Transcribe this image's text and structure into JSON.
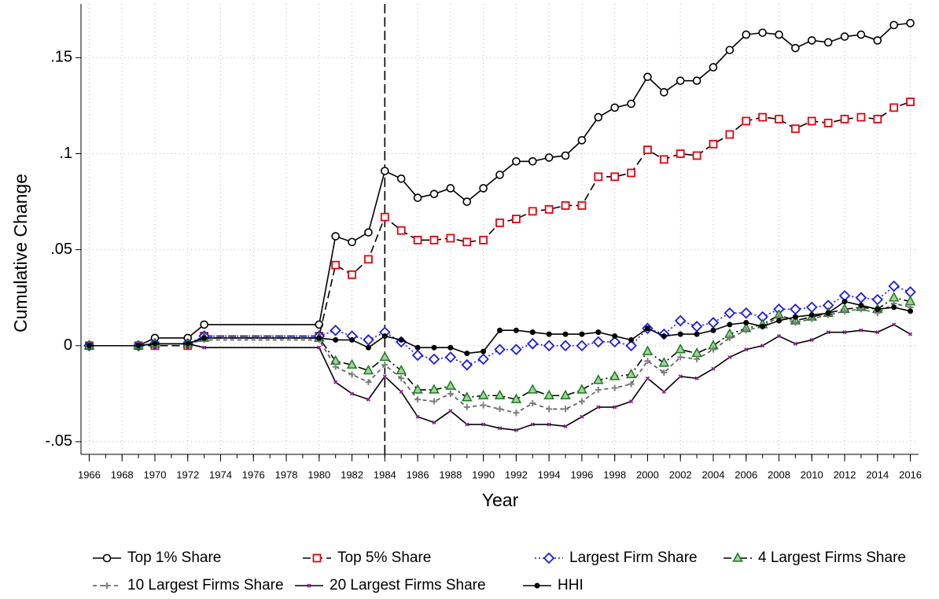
{
  "chart_data": {
    "type": "line",
    "y_label": "Cumulative Change",
    "x_label": "Year",
    "x": [
      1966,
      1969,
      1970,
      1972,
      1973,
      1980,
      1981,
      1982,
      1983,
      1984,
      1985,
      1986,
      1987,
      1988,
      1989,
      1990,
      1991,
      1992,
      1993,
      1994,
      1995,
      1996,
      1997,
      1998,
      1999,
      2000,
      2001,
      2002,
      2003,
      2004,
      2005,
      2006,
      2007,
      2008,
      2009,
      2010,
      2011,
      2012,
      2013,
      2014,
      2015,
      2016
    ],
    "xlim": [
      1965.5,
      2016.5
    ],
    "xticks": [
      1966,
      1968,
      1970,
      1972,
      1974,
      1976,
      1978,
      1980,
      1982,
      1984,
      1986,
      1988,
      1990,
      1992,
      1994,
      1996,
      1998,
      2000,
      2002,
      2004,
      2006,
      2008,
      2010,
      2012,
      2014,
      2016
    ],
    "ylim": [
      -0.0566,
      0.178
    ],
    "yticks": [
      {
        "value": -0.05,
        "label": "-.05"
      },
      0,
      {
        "value": 0.05,
        "label": ".05"
      },
      {
        "value": 0.1,
        "label": ".1"
      },
      {
        "value": 0.15,
        "label": ".15"
      }
    ],
    "grid": true,
    "vline": 1984,
    "series": [
      {
        "name": "Top 1% Share",
        "color": "#000000",
        "line_color": "#000000",
        "marker": "circle",
        "dash": "solid",
        "values": [
          0,
          0,
          0.004,
          0.004,
          0.011,
          0.011,
          0.057,
          0.054,
          0.059,
          0.091,
          0.087,
          0.077,
          0.079,
          0.082,
          0.075,
          0.082,
          0.089,
          0.096,
          0.096,
          0.098,
          0.099,
          0.107,
          0.119,
          0.124,
          0.126,
          0.14,
          0.132,
          0.138,
          0.138,
          0.145,
          0.154,
          0.162,
          0.163,
          0.162,
          0.155,
          0.159,
          0.158,
          0.161,
          0.162,
          0.159,
          0.167,
          0.168
        ]
      },
      {
        "name": "Top 5% Share",
        "color": "#e8000b",
        "line_color": "#000000",
        "marker": "square",
        "dash": "dash",
        "values": [
          0,
          0,
          0,
          0,
          0.005,
          0.005,
          0.042,
          0.037,
          0.045,
          0.067,
          0.06,
          0.055,
          0.055,
          0.056,
          0.054,
          0.055,
          0.064,
          0.066,
          0.07,
          0.071,
          0.073,
          0.073,
          0.088,
          0.088,
          0.09,
          0.102,
          0.097,
          0.1,
          0.099,
          0.105,
          0.11,
          0.117,
          0.119,
          0.118,
          0.113,
          0.117,
          0.116,
          0.118,
          0.119,
          0.118,
          0.124,
          0.127
        ]
      },
      {
        "name": "Largest Firm Share",
        "color": "#1a1ae6",
        "line_color": "#1a1ae6",
        "marker": "diamond",
        "dash": "dot",
        "values": [
          0,
          0,
          0.001,
          0.001,
          0.005,
          0.005,
          0.008,
          0.005,
          0.003,
          0.007,
          0.002,
          -0.005,
          -0.007,
          -0.006,
          -0.01,
          -0.007,
          -0.002,
          -0.002,
          0.001,
          0,
          0,
          0,
          0.002,
          0.002,
          0,
          0.009,
          0.006,
          0.013,
          0.01,
          0.012,
          0.017,
          0.017,
          0.015,
          0.019,
          0.019,
          0.02,
          0.021,
          0.026,
          0.025,
          0.024,
          0.031,
          0.028
        ]
      },
      {
        "name": "4 Largest Firms Share",
        "color": "#1a7a1a",
        "line_color": "#000000",
        "marker": "triangle",
        "dash": "dashdot",
        "values": [
          0,
          0,
          0.001,
          0.001,
          0.004,
          0.004,
          -0.008,
          -0.01,
          -0.013,
          -0.006,
          -0.013,
          -0.023,
          -0.023,
          -0.021,
          -0.027,
          -0.026,
          -0.026,
          -0.028,
          -0.023,
          -0.026,
          -0.026,
          -0.023,
          -0.018,
          -0.016,
          -0.015,
          -0.003,
          -0.009,
          -0.002,
          -0.004,
          0,
          0.006,
          0.009,
          0.011,
          0.016,
          0.013,
          0.015,
          0.017,
          0.019,
          0.02,
          0.019,
          0.025,
          0.023
        ]
      },
      {
        "name": "10 Largest Firms Share",
        "color": "#808080",
        "line_color": "#555555",
        "marker": "plus",
        "dash": "shortdash",
        "values": [
          0,
          0,
          0.001,
          0.001,
          0.003,
          0.003,
          -0.011,
          -0.015,
          -0.019,
          -0.01,
          -0.017,
          -0.028,
          -0.029,
          -0.025,
          -0.032,
          -0.031,
          -0.033,
          -0.035,
          -0.03,
          -0.033,
          -0.033,
          -0.029,
          -0.023,
          -0.022,
          -0.02,
          -0.008,
          -0.014,
          -0.006,
          -0.007,
          -0.002,
          0.004,
          0.008,
          0.01,
          0.015,
          0.012,
          0.014,
          0.016,
          0.018,
          0.019,
          0.017,
          0.022,
          0.02
        ]
      },
      {
        "name": "20 Largest Firms Share",
        "color": "#8b1a8b",
        "line_color": "#000000",
        "marker": "x",
        "dash": "solid",
        "values": [
          0,
          0,
          0.001,
          0.001,
          -0.001,
          -0.001,
          -0.019,
          -0.025,
          -0.028,
          -0.016,
          -0.024,
          -0.037,
          -0.04,
          -0.034,
          -0.041,
          -0.041,
          -0.043,
          -0.044,
          -0.041,
          -0.041,
          -0.042,
          -0.037,
          -0.032,
          -0.032,
          -0.029,
          -0.017,
          -0.024,
          -0.016,
          -0.017,
          -0.012,
          -0.006,
          -0.002,
          0,
          0.005,
          0.001,
          0.003,
          0.007,
          0.007,
          0.008,
          0.007,
          0.011,
          0.006
        ]
      },
      {
        "name": "HHI",
        "color": "#000000",
        "line_color": "#000000",
        "marker": "dot",
        "dash": "solid",
        "values": [
          0,
          0,
          0.001,
          0.001,
          0.004,
          0.004,
          0.003,
          0.003,
          -0.001,
          0.005,
          0.003,
          -0.001,
          -0.001,
          -0.001,
          -0.004,
          -0.003,
          0.008,
          0.008,
          0.007,
          0.006,
          0.006,
          0.006,
          0.007,
          0.005,
          0.003,
          0.009,
          0.005,
          0.006,
          0.006,
          0.008,
          0.011,
          0.012,
          0.01,
          0.013,
          0.015,
          0.016,
          0.017,
          0.023,
          0.021,
          0.019,
          0.02,
          0.018
        ]
      }
    ]
  }
}
